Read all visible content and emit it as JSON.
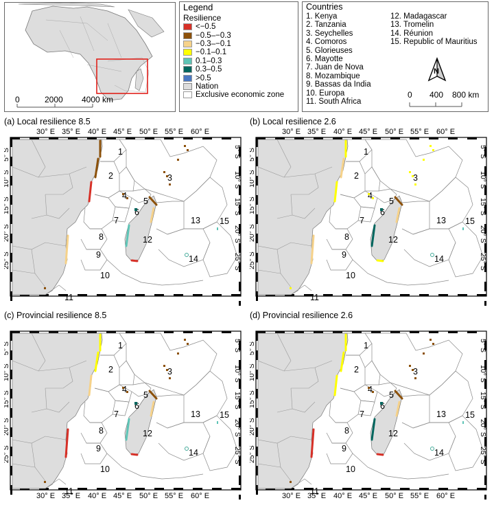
{
  "overview": {
    "scale_labels": [
      "0",
      "2000",
      "4000 km"
    ]
  },
  "legend": {
    "title": "Legend",
    "subtitle": "Resilience",
    "items": [
      {
        "label": "<−0.5",
        "color": "#d73027"
      },
      {
        "label": "−0.5–−0.3",
        "color": "#8c510a"
      },
      {
        "label": "−0.3–−0.1",
        "color": "#f6d28a"
      },
      {
        "label": "−0.1–0.1",
        "color": "#ffff00"
      },
      {
        "label": "0.1–0.3",
        "color": "#5ec4b6"
      },
      {
        "label": "0.3–0.5",
        "color": "#01665e"
      },
      {
        "label": ">0.5",
        "color": "#4a78c2"
      },
      {
        "label": "Nation",
        "color": "#dddddd"
      },
      {
        "label": "Exclusive economic zone",
        "color": "#ffffff"
      }
    ]
  },
  "countries": {
    "title": "Countries",
    "col1": [
      "1. Kenya",
      "2. Tanzania",
      "3. Seychelles",
      "4. Comoros",
      "5. Glorieuses",
      "6. Mayotte",
      "7. Juan de Nova",
      "8. Mozambique",
      "9. Bassas da India",
      "10. Europa",
      "11. South Africa"
    ],
    "col2": [
      "12. Madagascar",
      "13. Tromelin",
      "14. Réunion",
      "15. Republic of Mauritius"
    ]
  },
  "north_arrow": {
    "letter": "N",
    "scale_labels": [
      "0",
      "400",
      "800 km"
    ]
  },
  "axes": {
    "lon_labels": [
      "30° E",
      "35° E",
      "40° E",
      "45° E",
      "50° E",
      "55° E",
      "60° E"
    ],
    "lat_labels": [
      "5° S",
      "10° S",
      "15° S",
      "20° S",
      "25° S"
    ]
  },
  "eez_labels": [
    "1",
    "2",
    "3",
    "4",
    "5",
    "6",
    "7",
    "8",
    "9",
    "10",
    "11",
    "12",
    "13",
    "14",
    "15"
  ],
  "panels": [
    {
      "title": "(a) Local resilience 8.5"
    },
    {
      "title": "(b) Local resilience 2.6"
    },
    {
      "title": "(c) Provincial resilience 8.5"
    },
    {
      "title": "(d) Provincial resilience 2.6"
    }
  ]
}
